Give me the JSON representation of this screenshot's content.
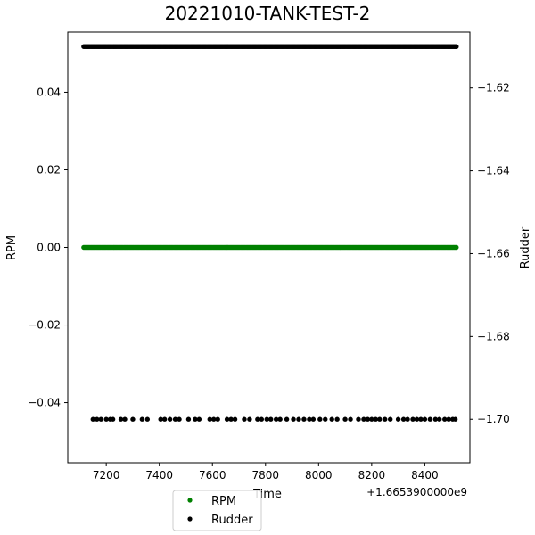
{
  "chart_data": {
    "type": "scatter",
    "title": "20221010-TANK-TEST-2",
    "xlabel": "Time",
    "x_offset_label": "+1.6653900000e9",
    "ylabel_left": "RPM",
    "ylabel_right": "Rudder",
    "xlim": [
      7055,
      8570
    ],
    "ylim_left": [
      -0.0555,
      0.0555
    ],
    "ylim_right": [
      -1.7105,
      -1.6065
    ],
    "x_ticks": [
      7200,
      7400,
      7600,
      7800,
      8000,
      8200,
      8400
    ],
    "x_tick_labels": [
      "7200",
      "7400",
      "7600",
      "7800",
      "8000",
      "8200",
      "8400"
    ],
    "y_left_ticks": [
      -0.04,
      -0.02,
      0.0,
      0.02,
      0.04
    ],
    "y_left_tick_labels": [
      "−0.04",
      "−0.02",
      "0.00",
      "0.02",
      "0.04"
    ],
    "y_right_ticks": [
      -1.7,
      -1.68,
      -1.66,
      -1.64,
      -1.62
    ],
    "y_right_tick_labels": [
      "−1.70",
      "−1.68",
      "−1.66",
      "−1.64",
      "−1.62"
    ],
    "grid": false,
    "legend_position": "bottom-center",
    "series": [
      {
        "name": "RPM",
        "axis": "left",
        "color": "#008000",
        "x_range": [
          7115,
          8520
        ],
        "y_constant": 0.0
      },
      {
        "name": "Rudder",
        "axis": "right",
        "color": "#000000",
        "x_range_top": [
          7115,
          8520
        ],
        "y_top": -1.61,
        "y_bottom": -1.7,
        "x_bottom": [
          7150,
          7165,
          7180,
          7200,
          7215,
          7225,
          7255,
          7270,
          7300,
          7335,
          7355,
          7405,
          7420,
          7440,
          7460,
          7475,
          7510,
          7535,
          7550,
          7590,
          7605,
          7620,
          7655,
          7670,
          7685,
          7720,
          7740,
          7770,
          7785,
          7805,
          7820,
          7840,
          7855,
          7880,
          7905,
          7925,
          7945,
          7965,
          7980,
          8005,
          8025,
          8050,
          8070,
          8100,
          8120,
          8150,
          8170,
          8185,
          8200,
          8215,
          8230,
          8250,
          8270,
          8300,
          8320,
          8335,
          8355,
          8370,
          8385,
          8400,
          8420,
          8440,
          8455,
          8475,
          8490,
          8505,
          8515
        ]
      }
    ]
  }
}
